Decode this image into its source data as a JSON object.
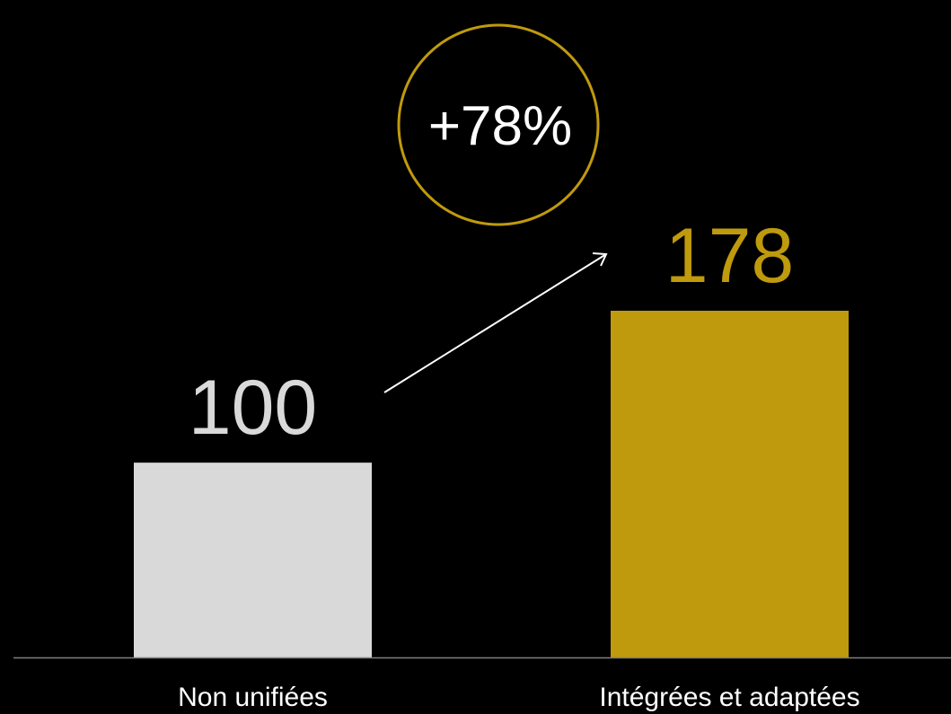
{
  "chart_data": {
    "type": "bar",
    "categories": [
      "Non unifiées",
      "Intégrées et adaptées"
    ],
    "values": [
      100,
      178
    ],
    "value_labels": [
      "100",
      "178"
    ],
    "annotation": "+78%",
    "ylim": [
      0,
      178
    ],
    "grid": false,
    "legend": "none",
    "colors": {
      "background": "#000000",
      "bars": [
        "#d9d9d9",
        "#bf9a0c"
      ],
      "value_labels": [
        "#d9d9d9",
        "#bf9a0c"
      ],
      "category_labels": "#ffffff",
      "annotation_text": "#ffffff",
      "annotation_ring": "#bf9a0c",
      "arrow": "#ffffff",
      "axis": "#7f7f7f"
    }
  }
}
